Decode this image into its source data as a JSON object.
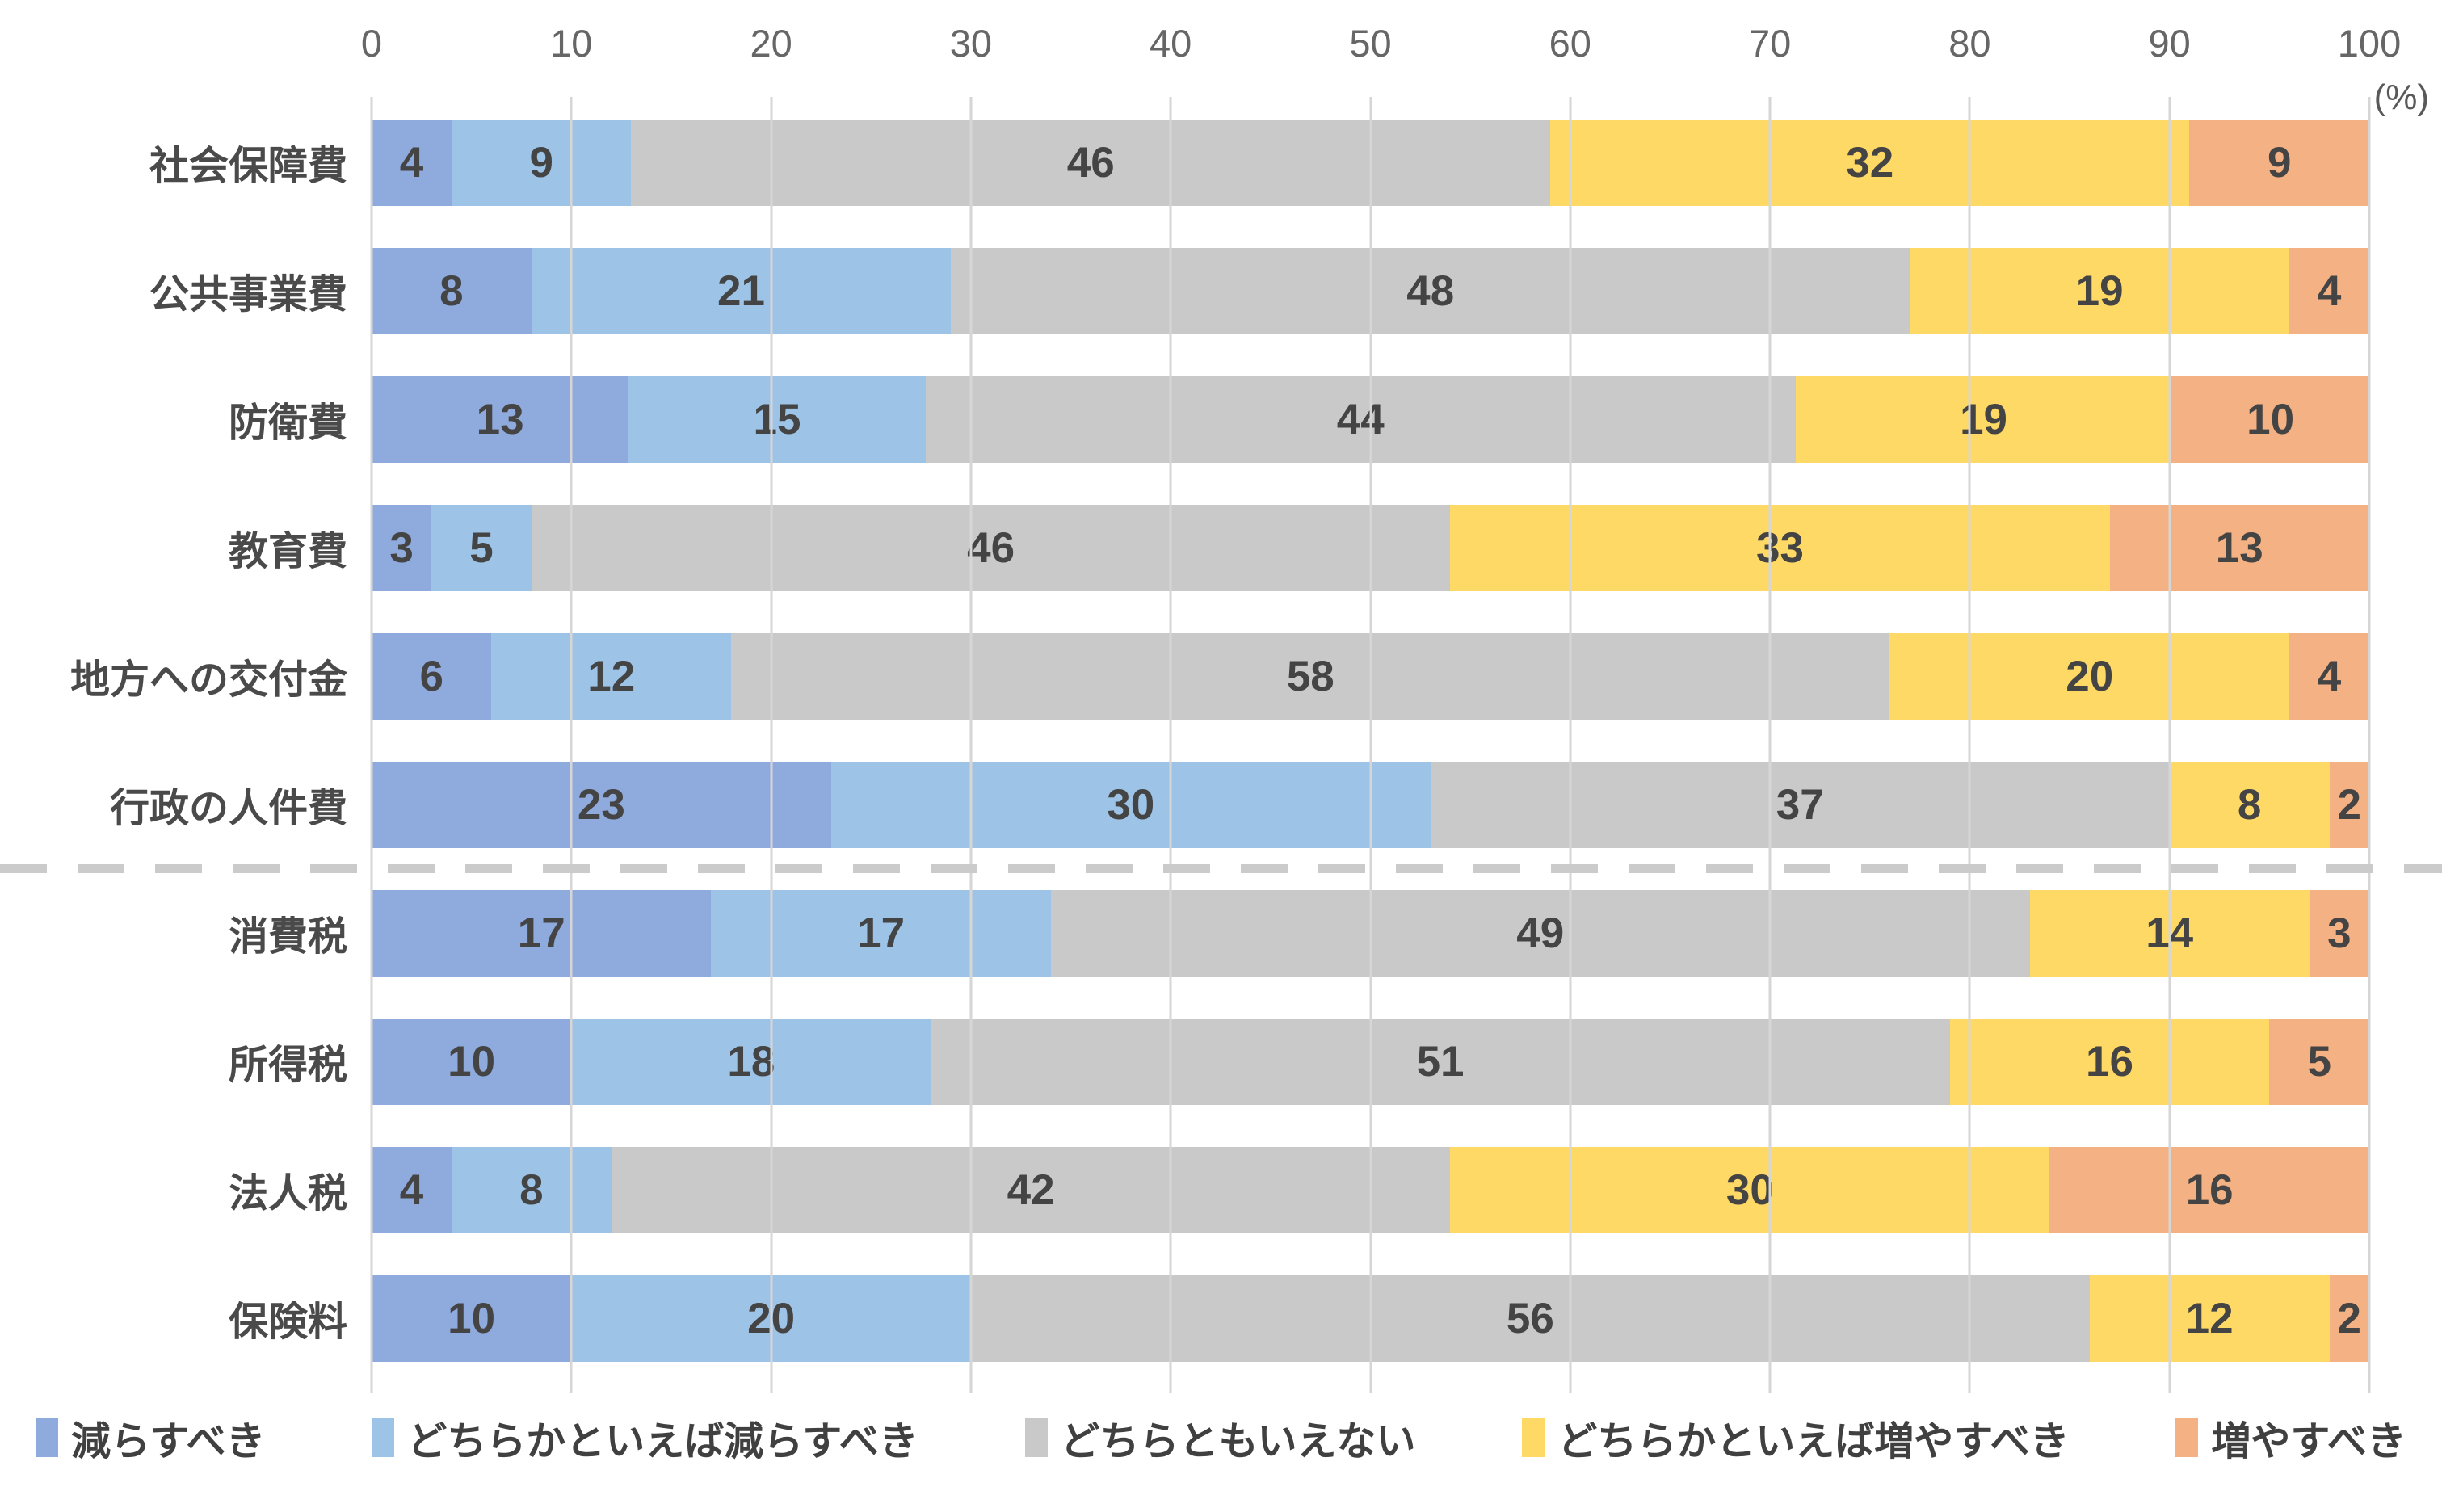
{
  "chart_data": {
    "type": "bar",
    "orientation": "horizontal-stacked",
    "title": "",
    "xlabel_unit": "(%)",
    "xlim": [
      0,
      100
    ],
    "xticks": [
      0,
      10,
      20,
      30,
      40,
      50,
      60,
      70,
      80,
      90,
      100
    ],
    "grid": true,
    "legend_position": "bottom",
    "divider_after_category_index": 5,
    "categories": [
      "社会保障費",
      "公共事業費",
      "防衛費",
      "教育費",
      "地方への交付金",
      "行政の人件費",
      "消費税",
      "所得税",
      "法人税",
      "保険料"
    ],
    "series": [
      {
        "name": "減らすべき",
        "color": "#8FAADC",
        "values": [
          4,
          8,
          13,
          3,
          6,
          23,
          17,
          10,
          4,
          10
        ]
      },
      {
        "name": "どちらかといえば減らすべき",
        "color": "#9DC3E6",
        "values": [
          9,
          21,
          15,
          5,
          12,
          30,
          17,
          18,
          8,
          20
        ]
      },
      {
        "name": "どちらともいえない",
        "color": "#C9C9C9",
        "values": [
          46,
          48,
          44,
          46,
          58,
          37,
          49,
          51,
          42,
          56
        ]
      },
      {
        "name": "どちらかといえば増やすべき",
        "color": "#FFD966",
        "values": [
          32,
          19,
          19,
          33,
          20,
          8,
          14,
          16,
          30,
          12
        ]
      },
      {
        "name": "増やすべき",
        "color": "#F4B183",
        "values": [
          9,
          4,
          10,
          13,
          4,
          2,
          3,
          5,
          16,
          2
        ]
      }
    ],
    "colors": {
      "gridline": "#D6D6D6",
      "divider": "#CBCBCB",
      "axis_text": "#666666",
      "label_text": "#444444"
    }
  }
}
